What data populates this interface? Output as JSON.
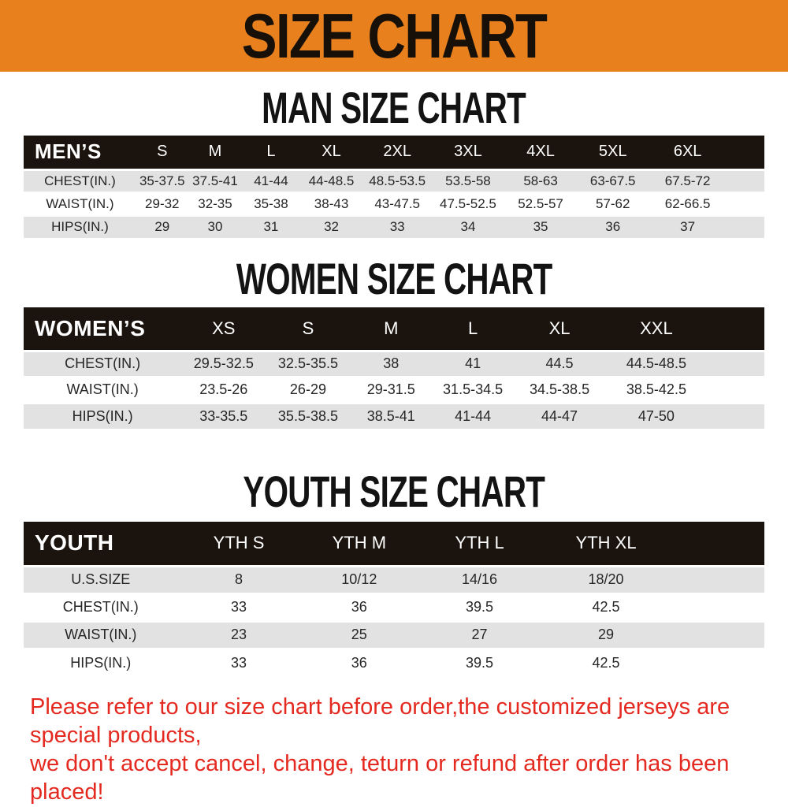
{
  "banner": {
    "title": "SIZE CHART"
  },
  "sections": [
    {
      "id": "men",
      "heading": "MAN SIZE CHART",
      "table": {
        "header": [
          "MEN’S",
          "S",
          "M",
          "L",
          "XL",
          "2XL",
          "3XL",
          "4XL",
          "5XL",
          "6XL"
        ],
        "rows": [
          {
            "label": "CHEST(IN.)",
            "values": [
              "35-37.5",
              "37.5-41",
              "41-44",
              "44-48.5",
              "48.5-53.5",
              "53.5-58",
              "58-63",
              "63-67.5",
              "67.5-72"
            ]
          },
          {
            "label": "WAIST(IN.)",
            "values": [
              "29-32",
              "32-35",
              "35-38",
              "38-43",
              "43-47.5",
              "47.5-52.5",
              "52.5-57",
              "57-62",
              "62-66.5"
            ]
          },
          {
            "label": "HIPS(IN.)",
            "values": [
              "29",
              "30",
              "31",
              "32",
              "33",
              "34",
              "35",
              "36",
              "37"
            ]
          }
        ]
      }
    },
    {
      "id": "women",
      "heading": "WOMEN SIZE CHART",
      "table": {
        "header": [
          "WOMEN’S",
          "XS",
          "S",
          "M",
          "L",
          "XL",
          "XXL"
        ],
        "rows": [
          {
            "label": "CHEST(IN.)",
            "values": [
              "29.5-32.5",
              "32.5-35.5",
              "38",
              "41",
              "44.5",
              "44.5-48.5"
            ]
          },
          {
            "label": "WAIST(IN.)",
            "values": [
              "23.5-26",
              "26-29",
              "29-31.5",
              "31.5-34.5",
              "34.5-38.5",
              "38.5-42.5"
            ]
          },
          {
            "label": "HIPS(IN.)",
            "values": [
              "33-35.5",
              "35.5-38.5",
              "38.5-41",
              "41-44",
              "44-47",
              "47-50"
            ]
          }
        ]
      }
    },
    {
      "id": "youth",
      "heading": "YOUTH SIZE CHART",
      "table": {
        "header": [
          "YOUTH",
          "YTH S",
          "YTH M",
          "YTH L",
          "YTH XL"
        ],
        "rows": [
          {
            "label": "U.S.SIZE",
            "values": [
              "8",
              "10/12",
              "14/16",
              "18/20"
            ]
          },
          {
            "label": "CHEST(IN.)",
            "values": [
              "33",
              "36",
              "39.5",
              "42.5"
            ]
          },
          {
            "label": "WAIST(IN.)",
            "values": [
              "23",
              "25",
              "27",
              "29"
            ]
          },
          {
            "label": "HIPS(IN.)",
            "values": [
              "33",
              "36",
              "39.5",
              "42.5"
            ]
          }
        ]
      }
    }
  ],
  "notice": {
    "line1": "Please refer to our size chart before order,the customized jerseys are special products,",
    "line2": "we don't accept cancel, change, teturn or refund after order has been placed!"
  },
  "colors": {
    "banner_orange": "#E8801E",
    "table_header_black": "#1B130D",
    "row_gray": "#E2E2E2",
    "notice_red": "#E42A20"
  }
}
